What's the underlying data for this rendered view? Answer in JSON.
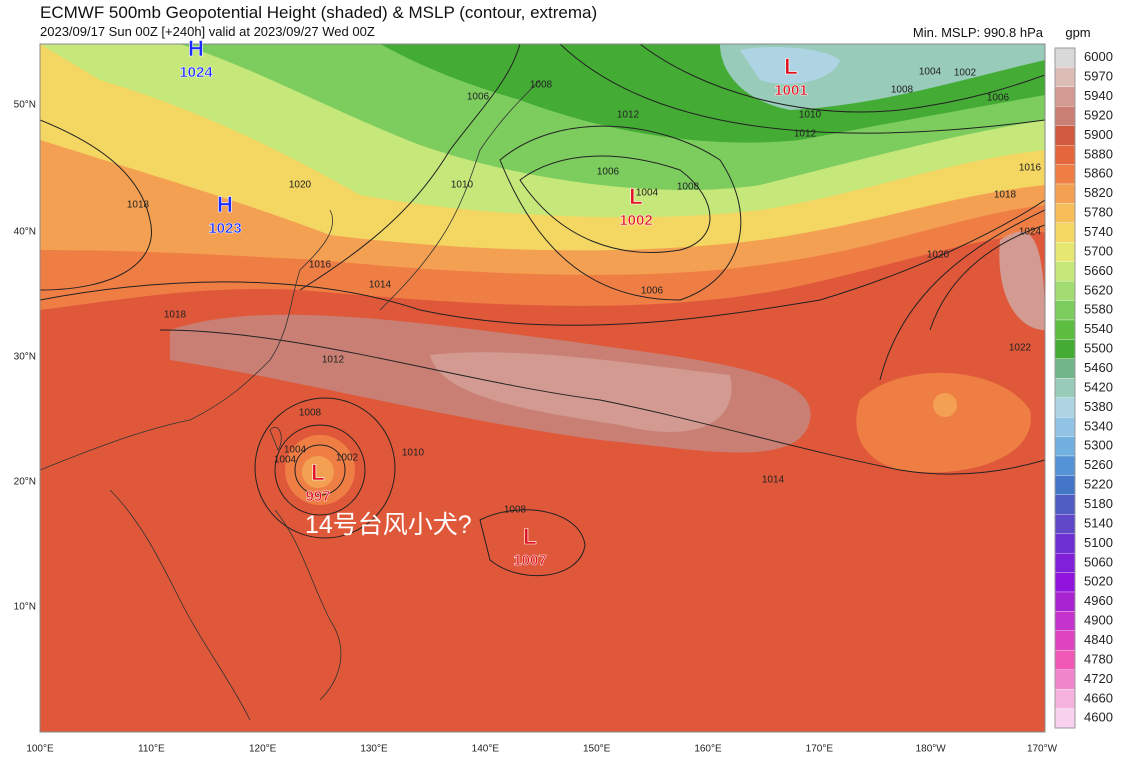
{
  "header": {
    "title": "ECMWF 500mb Geopotential Height (shaded) & MSLP (contour, extrema)",
    "subtitle": "2023/09/17 Sun 00Z [+240h] valid at 2023/09/27 Wed 00Z",
    "min_mslp": "Min. MSLP: 990.8 hPa"
  },
  "colorbar": {
    "unit": "gpm",
    "levels": [
      "6000",
      "5970",
      "5940",
      "5920",
      "5900",
      "5880",
      "5860",
      "5820",
      "5780",
      "5740",
      "5700",
      "5660",
      "5620",
      "5580",
      "5540",
      "5500",
      "5460",
      "5420",
      "5380",
      "5340",
      "5300",
      "5260",
      "5220",
      "5180",
      "5140",
      "5100",
      "5060",
      "5020",
      "4960",
      "4900",
      "4840",
      "4780",
      "4720",
      "4660",
      "4600"
    ],
    "colors": [
      "#d9d9d9",
      "#dcbdb6",
      "#d29a90",
      "#c97f74",
      "#cf5a40",
      "#e4663d",
      "#ef7e45",
      "#f4a052",
      "#f6bd58",
      "#f4d762",
      "#e6e872",
      "#c6e77a",
      "#a3dc70",
      "#7ccd5e",
      "#5cbd41",
      "#44ab35",
      "#73b58a",
      "#98cbb9",
      "#aed4e4",
      "#93c3e4",
      "#72b0e0",
      "#5494d6",
      "#4476c8",
      "#4f5cc2",
      "#5e48c8",
      "#6e30d0",
      "#8020d8",
      "#9014dc",
      "#a824d0",
      "#c434cc",
      "#df44c0",
      "#ef58b4",
      "#f286cc",
      "#f6b2de",
      "#f9d2ef"
    ]
  },
  "lat_labels": [
    "50°N",
    "40°N",
    "30°N",
    "20°N",
    "10°N"
  ],
  "lon_labels": [
    "100°E",
    "110°E",
    "120°E",
    "130°E",
    "140°E",
    "150°E",
    "160°E",
    "170°E",
    "180°W",
    "170°W"
  ],
  "centers": [
    {
      "type": "H",
      "value": "1024"
    },
    {
      "type": "H",
      "value": "1023"
    },
    {
      "type": "L",
      "value": "1001"
    },
    {
      "type": "L",
      "value": "1002"
    },
    {
      "type": "L",
      "value": "997"
    },
    {
      "type": "L",
      "value": "1007"
    }
  ],
  "annotation": "14号台风小犬?",
  "contour_labels": [
    "1006",
    "1008",
    "1012",
    "1010",
    "1006",
    "1008",
    "1004",
    "1006",
    "1014",
    "1016",
    "1018",
    "1012",
    "1010",
    "1008",
    "1004",
    "1002",
    "1014",
    "1008",
    "1022",
    "1020",
    "1018",
    "1016",
    "1024",
    "1010",
    "1012",
    "1004",
    "1002",
    "1006",
    "1008",
    "1018",
    "1020",
    "1004"
  ]
}
